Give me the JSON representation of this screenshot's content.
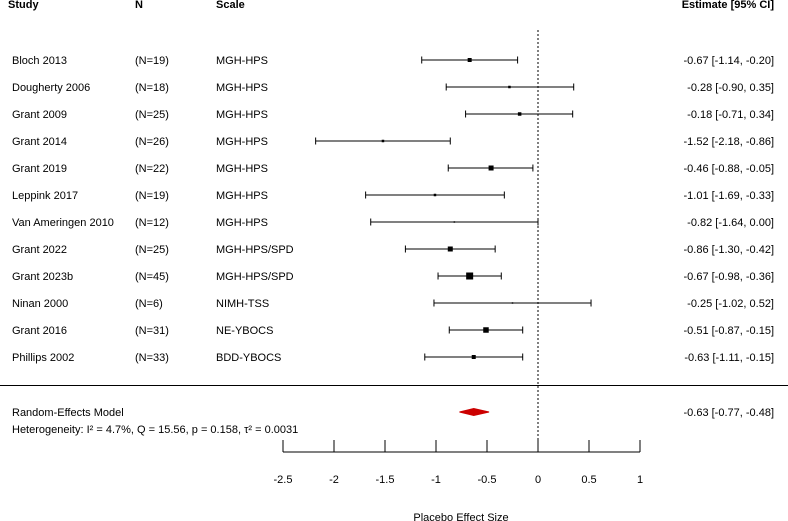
{
  "headers": {
    "study": "Study",
    "n": "N",
    "scale": "Scale",
    "estimate": "Estimate [95% CI]"
  },
  "chart_data": {
    "type": "forest",
    "xlabel": "Placebo Effect Size",
    "xlim": [
      -2.5,
      1
    ],
    "xticks": [
      -2.5,
      -2,
      -1.5,
      -1,
      -0.5,
      0,
      0.5,
      1
    ],
    "xtick_labels": [
      "-2.5",
      "-2",
      "-1.5",
      "-1",
      "-0.5",
      "0",
      "0.5",
      "1"
    ],
    "reference_line": 0,
    "studies": [
      {
        "study": "Bloch 2013",
        "n": "(N=19)",
        "scale": "MGH-HPS",
        "estimate": -0.67,
        "lower": -1.14,
        "upper": -0.2,
        "weight": 4,
        "label": "-0.67 [-1.14, -0.20]"
      },
      {
        "study": "Dougherty 2006",
        "n": "(N=18)",
        "scale": "MGH-HPS",
        "estimate": -0.28,
        "lower": -0.9,
        "upper": 0.35,
        "weight": 2.5,
        "label": "-0.28 [-0.90,  0.35]"
      },
      {
        "study": "Grant 2009",
        "n": "(N=25)",
        "scale": "MGH-HPS",
        "estimate": -0.18,
        "lower": -0.71,
        "upper": 0.34,
        "weight": 3.5,
        "label": "-0.18 [-0.71,  0.34]"
      },
      {
        "study": "Grant 2014",
        "n": "(N=26)",
        "scale": "MGH-HPS",
        "estimate": -1.52,
        "lower": -2.18,
        "upper": -0.86,
        "weight": 2.5,
        "label": "-1.52 [-2.18, -0.86]"
      },
      {
        "study": "Grant 2019",
        "n": "(N=22)",
        "scale": "MGH-HPS",
        "estimate": -0.46,
        "lower": -0.88,
        "upper": -0.05,
        "weight": 5,
        "label": "-0.46 [-0.88, -0.05]"
      },
      {
        "study": "Leppink 2017",
        "n": "(N=19)",
        "scale": "MGH-HPS",
        "estimate": -1.01,
        "lower": -1.69,
        "upper": -0.33,
        "weight": 2.5,
        "label": "-1.01 [-1.69, -0.33]"
      },
      {
        "study": "Van Ameringen 2010",
        "n": "(N=12)",
        "scale": "MGH-HPS",
        "estimate": -0.82,
        "lower": -1.64,
        "upper": 0.0,
        "weight": 1.5,
        "label": "-0.82 [-1.64,  0.00]"
      },
      {
        "study": "Grant 2022",
        "n": "(N=25)",
        "scale": "MGH-HPS/SPD",
        "estimate": -0.86,
        "lower": -1.3,
        "upper": -0.42,
        "weight": 5,
        "label": "-0.86 [-1.30, -0.42]"
      },
      {
        "study": "Grant 2023b",
        "n": "(N=45)",
        "scale": "MGH-HPS/SPD",
        "estimate": -0.67,
        "lower": -0.98,
        "upper": -0.36,
        "weight": 7,
        "label": "-0.67 [-0.98, -0.36]"
      },
      {
        "study": "Ninan 2000",
        "n": "(N=6)",
        "scale": "NIMH-TSS",
        "estimate": -0.25,
        "lower": -1.02,
        "upper": 0.52,
        "weight": 1.5,
        "label": "-0.25 [-1.02,  0.52]"
      },
      {
        "study": "Grant 2016",
        "n": "(N=31)",
        "scale": "NE-YBOCS",
        "estimate": -0.51,
        "lower": -0.87,
        "upper": -0.15,
        "weight": 5.5,
        "label": "-0.51 [-0.87, -0.15]"
      },
      {
        "study": "Phillips 2002",
        "n": "(N=33)",
        "scale": "BDD-YBOCS",
        "estimate": -0.63,
        "lower": -1.11,
        "upper": -0.15,
        "weight": 4,
        "label": "-0.63 [-1.11, -0.15]"
      }
    ],
    "summary": {
      "label": "Random-Effects Model",
      "estimate": -0.63,
      "lower": -0.77,
      "upper": -0.48,
      "ci_label": "-0.63 [-0.77, -0.48]",
      "heterogeneity": "Heterogeneity: I² = 4.7%, Q = 15.56, p = 0.158, τ² = 0.0031",
      "color": "#cc0000"
    }
  }
}
